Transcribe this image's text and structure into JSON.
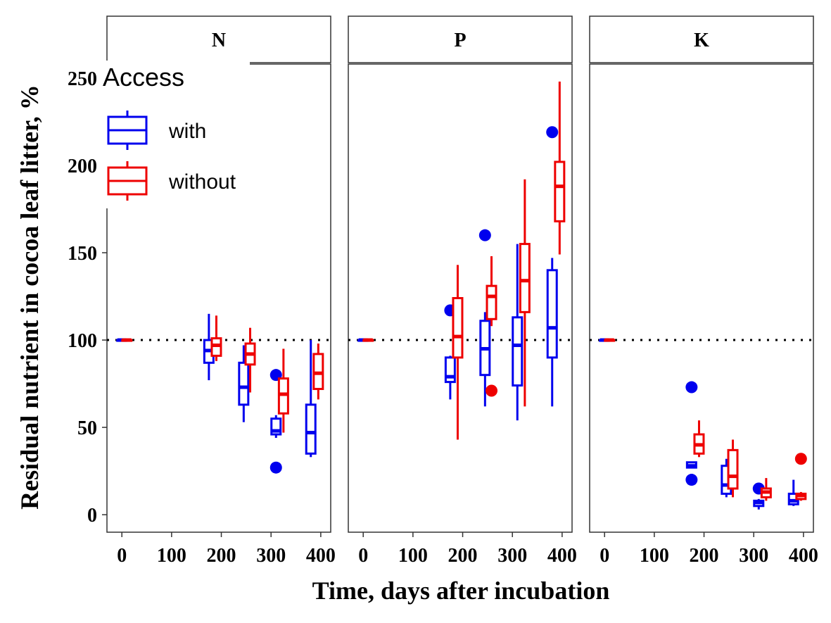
{
  "chart_data": {
    "type": "boxplot",
    "xlabel": "Time, days after incubation",
    "ylabel": "Residual nutrient in cocoa leaf litter, %",
    "xlim": [
      -30,
      420
    ],
    "ylim": [
      -10,
      258
    ],
    "x_ticks": [
      0,
      100,
      200,
      300,
      400
    ],
    "y_ticks": [
      0,
      50,
      100,
      150,
      200,
      250
    ],
    "reference_line": 100,
    "legend": {
      "title": "Access",
      "position": "top-left",
      "entries": [
        {
          "name": "with",
          "color": "#0000EE"
        },
        {
          "name": "without",
          "color": "#EE0000"
        }
      ]
    },
    "panels": [
      {
        "label": "N",
        "series": [
          {
            "name": "with",
            "boxes": [
              {
                "x": 0,
                "low": 100,
                "q1": 100,
                "median": 100,
                "q3": 100,
                "high": 100,
                "outliers": []
              },
              {
                "x": 175,
                "low": 77,
                "q1": 87,
                "median": 94,
                "q3": 100,
                "high": 115,
                "outliers": []
              },
              {
                "x": 245,
                "low": 53,
                "q1": 63,
                "median": 73,
                "q3": 87,
                "high": 97,
                "outliers": []
              },
              {
                "x": 310,
                "low": 44,
                "q1": 46,
                "median": 48,
                "q3": 55,
                "high": 57,
                "outliers": [
                  80,
                  27
                ]
              },
              {
                "x": 380,
                "low": 33,
                "q1": 35,
                "median": 47,
                "q3": 63,
                "high": 100,
                "outliers": []
              }
            ]
          },
          {
            "name": "without",
            "boxes": [
              {
                "x": 10,
                "low": 100,
                "q1": 100,
                "median": 100,
                "q3": 100,
                "high": 100,
                "outliers": []
              },
              {
                "x": 190,
                "low": 88,
                "q1": 91,
                "median": 97,
                "q3": 101,
                "high": 114,
                "outliers": []
              },
              {
                "x": 258,
                "low": 70,
                "q1": 86,
                "median": 92,
                "q3": 98,
                "high": 107,
                "outliers": []
              },
              {
                "x": 325,
                "low": 47,
                "q1": 58,
                "median": 69,
                "q3": 78,
                "high": 95,
                "outliers": []
              },
              {
                "x": 395,
                "low": 66,
                "q1": 72,
                "median": 81,
                "q3": 92,
                "high": 98,
                "outliers": []
              }
            ]
          }
        ]
      },
      {
        "label": "P",
        "series": [
          {
            "name": "with",
            "boxes": [
              {
                "x": 0,
                "low": 100,
                "q1": 100,
                "median": 100,
                "q3": 100,
                "high": 100,
                "outliers": []
              },
              {
                "x": 175,
                "low": 66,
                "q1": 76,
                "median": 79,
                "q3": 90,
                "high": 91,
                "outliers": [
                  117
                ]
              },
              {
                "x": 245,
                "low": 62,
                "q1": 80,
                "median": 95,
                "q3": 111,
                "high": 116,
                "outliers": [
                  160
                ]
              },
              {
                "x": 310,
                "low": 54,
                "q1": 74,
                "median": 97,
                "q3": 113,
                "high": 155,
                "outliers": []
              },
              {
                "x": 380,
                "low": 62,
                "q1": 90,
                "median": 107,
                "q3": 140,
                "high": 147,
                "outliers": [
                  219
                ]
              }
            ]
          },
          {
            "name": "without",
            "boxes": [
              {
                "x": 10,
                "low": 100,
                "q1": 100,
                "median": 100,
                "q3": 100,
                "high": 100,
                "outliers": []
              },
              {
                "x": 190,
                "low": 43,
                "q1": 90,
                "median": 102,
                "q3": 124,
                "high": 143,
                "outliers": []
              },
              {
                "x": 258,
                "low": 108,
                "q1": 112,
                "median": 125,
                "q3": 131,
                "high": 148,
                "outliers": [
                  71
                ]
              },
              {
                "x": 325,
                "low": 62,
                "q1": 116,
                "median": 134,
                "q3": 155,
                "high": 192,
                "outliers": []
              },
              {
                "x": 395,
                "low": 149,
                "q1": 168,
                "median": 188,
                "q3": 202,
                "high": 248,
                "outliers": []
              }
            ]
          }
        ]
      },
      {
        "label": "K",
        "series": [
          {
            "name": "with",
            "boxes": [
              {
                "x": 0,
                "low": 100,
                "q1": 100,
                "median": 100,
                "q3": 100,
                "high": 100,
                "outliers": []
              },
              {
                "x": 175,
                "low": 27,
                "q1": 27,
                "median": 28,
                "q3": 30,
                "high": 30,
                "outliers": [
                  73,
                  20
                ]
              },
              {
                "x": 245,
                "low": 10,
                "q1": 12,
                "median": 17,
                "q3": 28,
                "high": 32,
                "outliers": []
              },
              {
                "x": 310,
                "low": 3,
                "q1": 5,
                "median": 7,
                "q3": 8,
                "high": 9,
                "outliers": [
                  15
                ]
              },
              {
                "x": 380,
                "low": 5,
                "q1": 6,
                "median": 8,
                "q3": 12,
                "high": 20,
                "outliers": []
              }
            ]
          },
          {
            "name": "without",
            "boxes": [
              {
                "x": 10,
                "low": 100,
                "q1": 100,
                "median": 100,
                "q3": 100,
                "high": 100,
                "outliers": []
              },
              {
                "x": 190,
                "low": 33,
                "q1": 35,
                "median": 40,
                "q3": 46,
                "high": 54,
                "outliers": []
              },
              {
                "x": 258,
                "low": 10,
                "q1": 15,
                "median": 22,
                "q3": 37,
                "high": 43,
                "outliers": []
              },
              {
                "x": 325,
                "low": 8,
                "q1": 10,
                "median": 13,
                "q3": 15,
                "high": 21,
                "outliers": []
              },
              {
                "x": 395,
                "low": 8,
                "q1": 9,
                "median": 11,
                "q3": 12,
                "high": 13,
                "outliers": [
                  32
                ]
              }
            ]
          }
        ]
      }
    ]
  }
}
